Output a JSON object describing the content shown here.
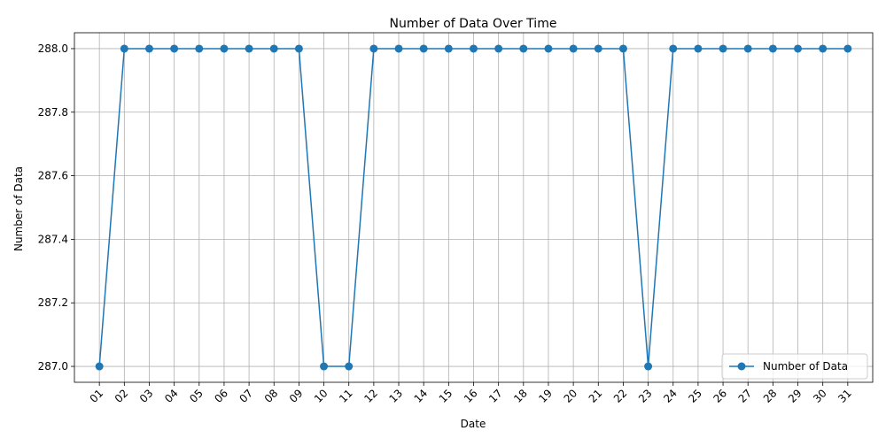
{
  "chart_data": {
    "type": "line",
    "title": "Number of Data Over Time",
    "xlabel": "Date",
    "ylabel": "Number of Data",
    "categories": [
      "01",
      "02",
      "03",
      "04",
      "05",
      "06",
      "07",
      "08",
      "09",
      "10",
      "11",
      "12",
      "13",
      "14",
      "15",
      "16",
      "17",
      "18",
      "19",
      "20",
      "21",
      "22",
      "23",
      "24",
      "25",
      "26",
      "27",
      "28",
      "29",
      "30",
      "31"
    ],
    "series": [
      {
        "name": "Number of Data",
        "color": "#1f77b4",
        "values": [
          287,
          288,
          288,
          288,
          288,
          288,
          288,
          288,
          288,
          287,
          287,
          288,
          288,
          288,
          288,
          288,
          288,
          288,
          288,
          288,
          288,
          288,
          287,
          288,
          288,
          288,
          288,
          288,
          288,
          288,
          288
        ]
      }
    ],
    "ylim": [
      286.95,
      288.05
    ],
    "yticks": [
      "287.0",
      "287.2",
      "287.4",
      "287.6",
      "287.8",
      "288.0"
    ],
    "grid": true,
    "legend_position": "lower-right",
    "marker": "circle"
  }
}
